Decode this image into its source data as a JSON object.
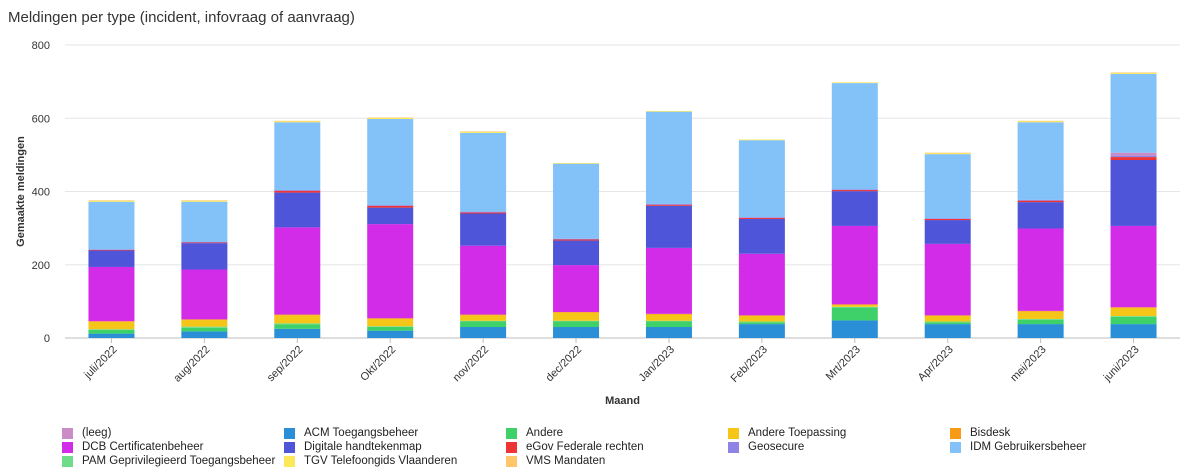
{
  "chart_data": {
    "type": "bar",
    "stacked": true,
    "title": "Meldingen per type (incident, infovraag of aanvraag)",
    "xlabel": "Maand",
    "ylabel": "Gemaakte meldingen",
    "ylim": [
      0,
      800
    ],
    "yticks": [
      0,
      200,
      400,
      600,
      800
    ],
    "grid": true,
    "legend_position": "bottom",
    "categories": [
      "juli/2022",
      "aug/2022",
      "sep/2022",
      "Okt/2022",
      "nov/2022",
      "dec/2022",
      "Jan/2023",
      "Feb/2023",
      "Mrt/2023",
      "Apr/2023",
      "mei/2023",
      "juni/2023"
    ],
    "series": [
      {
        "name": "ACM Toegangsbeheer",
        "color": "#2a8fd6",
        "values": [
          12,
          18,
          25,
          20,
          30,
          30,
          30,
          38,
          48,
          38,
          38,
          38
        ]
      },
      {
        "name": "Andere",
        "color": "#3ed16a",
        "values": [
          10,
          10,
          12,
          10,
          15,
          15,
          15,
          5,
          35,
          5,
          12,
          20
        ]
      },
      {
        "name": "PAM Geprivilegieerd Toegangsbeheer",
        "color": "#6fdc8a",
        "values": [
          2,
          3,
          3,
          2,
          2,
          2,
          2,
          2,
          2,
          2,
          2,
          2
        ]
      },
      {
        "name": "Andere Toepassing",
        "color": "#f5c518",
        "values": [
          20,
          18,
          22,
          20,
          15,
          22,
          17,
          15,
          5,
          15,
          20,
          22
        ]
      },
      {
        "name": "Bisdesk",
        "color": "#f79a16",
        "values": [
          2,
          2,
          2,
          2,
          2,
          2,
          2,
          2,
          2,
          2,
          2,
          2
        ]
      },
      {
        "name": "DCB Certificatenbeheer",
        "color": "#d22ce8",
        "values": [
          148,
          136,
          238,
          257,
          188,
          128,
          180,
          168,
          214,
          195,
          225,
          222
        ]
      },
      {
        "name": "Digitale handtekenmap",
        "color": "#4f55d8",
        "values": [
          45,
          72,
          95,
          45,
          88,
          67,
          115,
          95,
          95,
          65,
          72,
          180
        ]
      },
      {
        "name": "eGov Federale rechten",
        "color": "#ee3434",
        "values": [
          2,
          2,
          5,
          5,
          3,
          3,
          3,
          3,
          3,
          3,
          4,
          8
        ]
      },
      {
        "name": "Geosecure",
        "color": "#8e84e6",
        "values": [
          1,
          1,
          2,
          2,
          2,
          2,
          2,
          2,
          2,
          2,
          2,
          4
        ]
      },
      {
        "name": "(leeg)",
        "color": "#c98cc7",
        "values": [
          0,
          0,
          0,
          0,
          0,
          0,
          0,
          0,
          0,
          0,
          0,
          8
        ]
      },
      {
        "name": "IDM Gebruikersbeheer",
        "color": "#83c1f9",
        "values": [
          130,
          110,
          185,
          235,
          215,
          205,
          252,
          210,
          290,
          175,
          212,
          215
        ]
      },
      {
        "name": "TGV Telefoongids Vlaanderen",
        "color": "#fbe95a",
        "values": [
          3,
          3,
          3,
          3,
          3,
          2,
          2,
          2,
          2,
          3,
          3,
          3
        ]
      },
      {
        "name": "VMS Mandaten",
        "color": "#ffc66b",
        "values": [
          1,
          1,
          1,
          1,
          1,
          0,
          0,
          0,
          0,
          1,
          1,
          1
        ]
      }
    ]
  },
  "legend": {
    "items": [
      {
        "label": "(leeg)",
        "color": "#c98cc7"
      },
      {
        "label": "ACM Toegangsbeheer",
        "color": "#2a8fd6"
      },
      {
        "label": "Andere",
        "color": "#3ed16a"
      },
      {
        "label": "Andere Toepassing",
        "color": "#f5c518"
      },
      {
        "label": "Bisdesk",
        "color": "#f79a16"
      },
      {
        "label": "DCB Certificatenbeheer",
        "color": "#d22ce8"
      },
      {
        "label": "Digitale handtekenmap",
        "color": "#4f55d8"
      },
      {
        "label": "eGov Federale rechten",
        "color": "#ee3434"
      },
      {
        "label": "Geosecure",
        "color": "#8e84e6"
      },
      {
        "label": "IDM Gebruikersbeheer",
        "color": "#83c1f9"
      },
      {
        "label": "PAM Geprivilegieerd Toegangsbeheer",
        "color": "#6fdc8a"
      },
      {
        "label": "TGV Telefoongids Vlaanderen",
        "color": "#fbe95a"
      },
      {
        "label": "VMS Mandaten",
        "color": "#ffc66b"
      }
    ]
  }
}
